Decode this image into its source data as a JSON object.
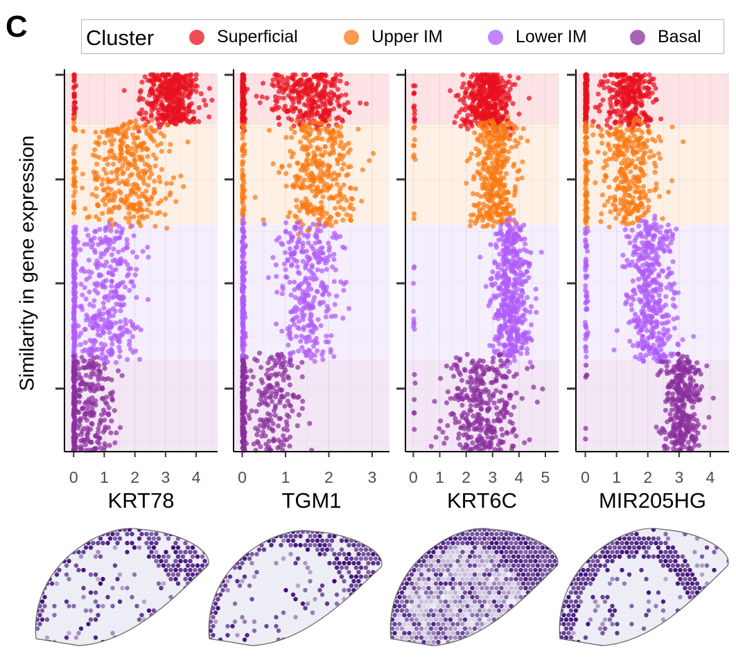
{
  "panel_letter": "C",
  "legend": {
    "title": "Cluster",
    "items": [
      {
        "label": "Superficial",
        "color": "#E8101E"
      },
      {
        "label": "Upper IM",
        "color": "#FA7A14"
      },
      {
        "label": "Lower IM",
        "color": "#B05CFA"
      },
      {
        "label": "Basal",
        "color": "#8B2F9E"
      }
    ]
  },
  "colors": {
    "band_superficial": "#fde3e6",
    "band_upper_im": "#fef0e4",
    "band_lower_im": "#f5eefd",
    "band_basal": "#f3e6f5",
    "tissue_base": "#ecebf4",
    "tissue_dark": "#3f0f76"
  },
  "chart_data": {
    "type": "scatter",
    "ylabel": "Similarity in gene expression",
    "y_tick_labels_shown": false,
    "facets": [
      {
        "gene": "KRT78",
        "xlabel": "KRT78",
        "xlim": [
          -0.3,
          4.7
        ],
        "xticks": [
          0,
          1,
          2,
          3,
          4
        ],
        "clusters": {
          "Superficial": {
            "x_center": 3.2,
            "x_spread": 0.8,
            "zero_fraction": 0.06
          },
          "Upper IM": {
            "x_center": 1.8,
            "x_spread": 1.1,
            "zero_fraction": 0.08
          },
          "Lower IM": {
            "x_center": 1.1,
            "x_spread": 0.9,
            "zero_fraction": 0.28
          },
          "Basal": {
            "x_center": 0.6,
            "x_spread": 0.6,
            "zero_fraction": 0.42
          }
        }
      },
      {
        "gene": "TGM1",
        "xlabel": "TGM1",
        "xlim": [
          -0.2,
          3.4
        ],
        "xticks": [
          0,
          1,
          2,
          3
        ],
        "clusters": {
          "Superficial": {
            "x_center": 1.5,
            "x_spread": 0.8,
            "zero_fraction": 0.22
          },
          "Upper IM": {
            "x_center": 1.8,
            "x_spread": 0.7,
            "zero_fraction": 0.12
          },
          "Lower IM": {
            "x_center": 1.5,
            "x_spread": 0.6,
            "zero_fraction": 0.35
          },
          "Basal": {
            "x_center": 0.7,
            "x_spread": 0.5,
            "zero_fraction": 0.45
          }
        }
      },
      {
        "gene": "KRT6C",
        "xlabel": "KRT6C",
        "xlim": [
          -0.3,
          5.5
        ],
        "xticks": [
          0,
          1,
          2,
          3,
          4,
          5
        ],
        "clusters": {
          "Superficial": {
            "x_center": 2.8,
            "x_spread": 0.8,
            "zero_fraction": 0.04
          },
          "Upper IM": {
            "x_center": 3.1,
            "x_spread": 0.7,
            "zero_fraction": 0.02
          },
          "Lower IM": {
            "x_center": 3.7,
            "x_spread": 0.6,
            "zero_fraction": 0.02
          },
          "Basal": {
            "x_center": 2.6,
            "x_spread": 1.2,
            "zero_fraction": 0.02
          }
        }
      },
      {
        "gene": "MIR205HG",
        "xlabel": "MIR205HG",
        "xlim": [
          -0.3,
          4.6
        ],
        "xticks": [
          0,
          1,
          2,
          3,
          4
        ],
        "clusters": {
          "Superficial": {
            "x_center": 1.4,
            "x_spread": 0.7,
            "zero_fraction": 0.28
          },
          "Upper IM": {
            "x_center": 1.4,
            "x_spread": 0.8,
            "zero_fraction": 0.16
          },
          "Lower IM": {
            "x_center": 2.1,
            "x_spread": 0.6,
            "zero_fraction": 0.12
          },
          "Basal": {
            "x_center": 3.1,
            "x_spread": 0.5,
            "zero_fraction": 0.02
          }
        }
      }
    ]
  }
}
